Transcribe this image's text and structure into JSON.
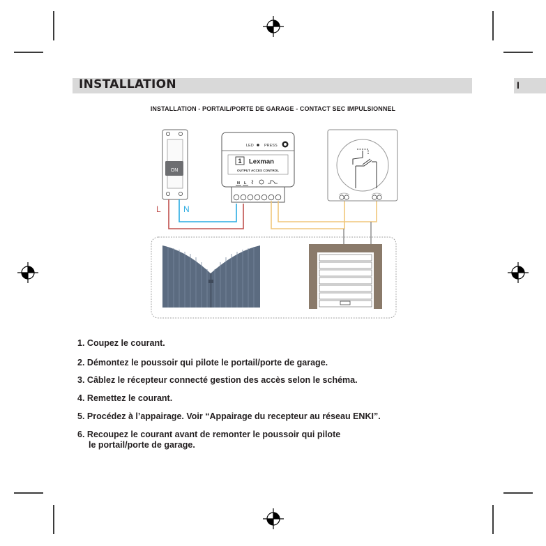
{
  "header": {
    "title": "INSTALLATION",
    "next_page_letter": "I"
  },
  "diagram": {
    "subtitle": "INSTALLATION - PORTAIL/PORTE DE GARAGE - CONTACT SEC IMPULSIONNEL",
    "breaker": {
      "switch_label": "ON"
    },
    "wire_labels": {
      "live": "L",
      "neutral": "N"
    },
    "receiver": {
      "led_label": "LED",
      "press_label": "PRESS",
      "channel": "1",
      "brand": "Lexman",
      "model": "OUTPUT ACCES CONTROL",
      "terminal_n": "N",
      "terminal_l": "L"
    },
    "colors": {
      "live_wire": "#c0504d",
      "neutral_wire": "#29abe2",
      "contact_wire": "#f0c67a",
      "gate": "#5b6b80",
      "garage_frame": "#8a7a6a"
    }
  },
  "steps": [
    {
      "num": "1.",
      "text": "Coupez le courant."
    },
    {
      "num": "2.",
      "text": "Démontez le poussoir qui pilote le portail/porte de garage."
    },
    {
      "num": "3.",
      "text": "Câblez le récepteur connecté gestion des accès selon le schéma."
    },
    {
      "num": "4.",
      "text": "Remettez le courant."
    },
    {
      "num": "5.",
      "text": "Procédez à l’appairage. Voir “Appairage du recepteur au réseau ENKI”."
    },
    {
      "num": "6.",
      "text": "Recoupez le courant avant de remonter le poussoir qui pilote",
      "cont": "le portail/porte de garage."
    }
  ]
}
